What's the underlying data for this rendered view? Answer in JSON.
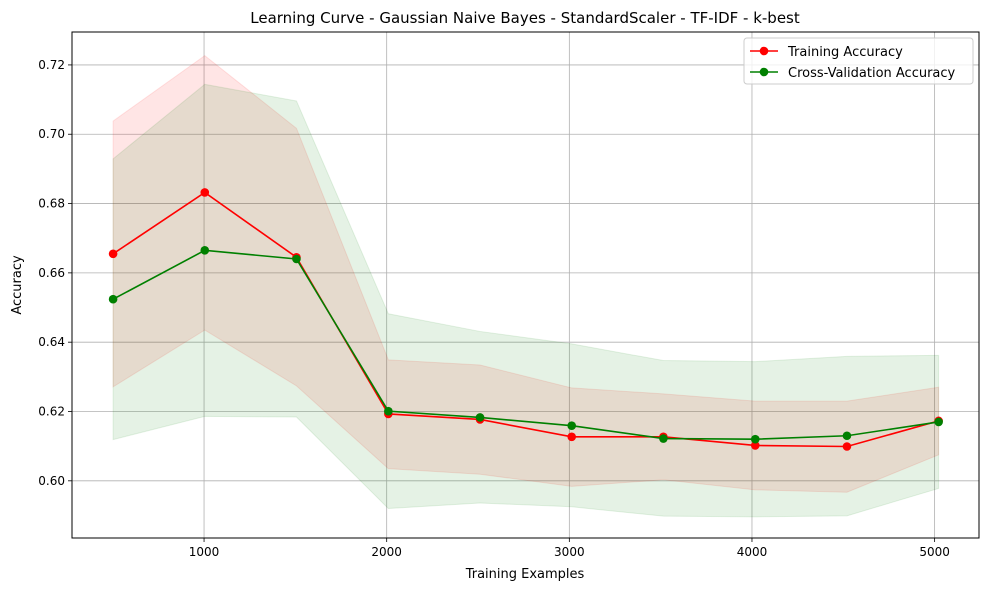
{
  "chart_data": {
    "type": "line",
    "title": "Learning Curve - Gaussian Naive Bayes - StandardScaler - TF-IDF - k-best",
    "xlabel": "Training Examples",
    "ylabel": "Accuracy",
    "xlim": [
      277,
      5243
    ],
    "ylim": [
      0.5835,
      0.7295
    ],
    "x_ticks": [
      1000,
      2000,
      3000,
      4000,
      5000
    ],
    "y_ticks": [
      0.6,
      0.62,
      0.64,
      0.66,
      0.68,
      0.7,
      0.72
    ],
    "x_tick_labels": [
      "1000",
      "2000",
      "3000",
      "4000",
      "5000"
    ],
    "y_tick_labels": [
      "0.60",
      "0.62",
      "0.64",
      "0.66",
      "0.68",
      "0.70",
      "0.72"
    ],
    "grid": true,
    "legend_position": "top-right",
    "x": [
      502,
      1004,
      1506,
      2009,
      2511,
      3013,
      3515,
      4018,
      4520,
      5022
    ],
    "series": [
      {
        "name": "Training Accuracy",
        "color": "#ff0000",
        "band_color": "#ff0000",
        "values": [
          0.6655,
          0.6832,
          0.6645,
          0.6193,
          0.6177,
          0.6127,
          0.6127,
          0.6102,
          0.6099,
          0.6173
        ],
        "band_upper": [
          0.7038,
          0.7227,
          0.7017,
          0.6349,
          0.6334,
          0.6268,
          0.6251,
          0.623,
          0.623,
          0.627
        ],
        "band_lower": [
          0.6271,
          0.6435,
          0.6274,
          0.6035,
          0.6019,
          0.5984,
          0.6003,
          0.5974,
          0.5967,
          0.6075
        ]
      },
      {
        "name": "Cross-Validation Accuracy",
        "color": "#008000",
        "band_color": "#008000",
        "values": [
          0.6524,
          0.6665,
          0.664,
          0.6201,
          0.6183,
          0.6159,
          0.6122,
          0.612,
          0.613,
          0.617
        ],
        "band_upper": [
          0.6929,
          0.7144,
          0.7096,
          0.6482,
          0.6431,
          0.6395,
          0.6347,
          0.6344,
          0.6359,
          0.6362
        ],
        "band_lower": [
          0.6119,
          0.6186,
          0.6184,
          0.592,
          0.5936,
          0.5925,
          0.5898,
          0.5896,
          0.5899,
          0.5978
        ]
      }
    ]
  }
}
